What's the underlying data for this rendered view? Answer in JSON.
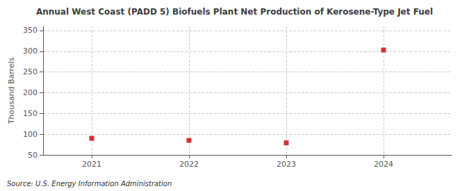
{
  "chart_data": {
    "type": "scatter",
    "title": "Annual West Coast (PADD 5) Biofuels Plant Net Production of Kerosene-Type Jet Fuel",
    "ylabel": "Thousand Barrels",
    "annotation": "Source: U.S. Energy Information Administration",
    "x": [
      2021,
      2022,
      2023,
      2024
    ],
    "values": [
      90,
      85,
      79,
      303
    ],
    "color": "#cc0000",
    "marker": "square",
    "xlim": [
      2020.5,
      2024.7
    ],
    "xticks": [
      2021,
      2022,
      2023,
      2024
    ],
    "ylim": [
      50,
      360
    ],
    "yticks": [
      50,
      100,
      150,
      200,
      250,
      300,
      350
    ],
    "grid": true
  }
}
